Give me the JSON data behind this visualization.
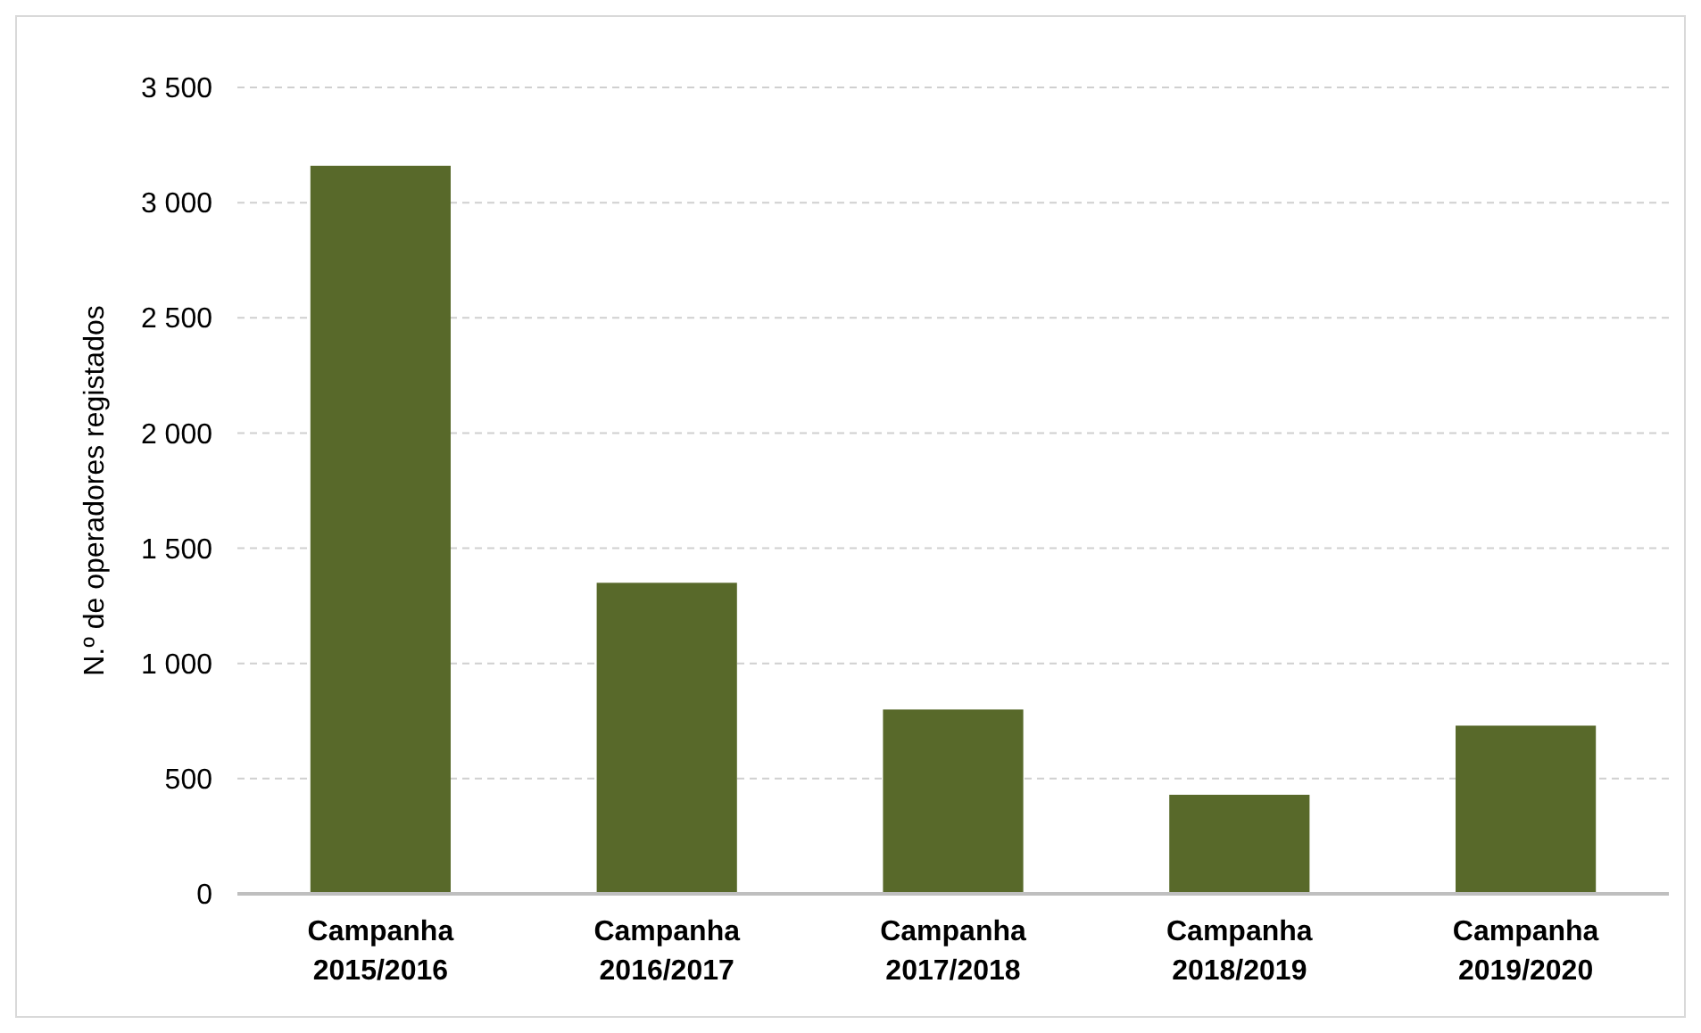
{
  "chart_data": {
    "type": "bar",
    "ylabel": "N.º de operadores registados",
    "categories": [
      "Campanha 2015/2016",
      "Campanha 2016/2017",
      "Campanha 2017/2018",
      "Campanha 2018/2019",
      "Campanha 2019/2020"
    ],
    "values": [
      3160,
      1350,
      800,
      430,
      730
    ],
    "color": "#58692a",
    "ylim": [
      0,
      3500
    ],
    "yticks": [
      {
        "value": 0,
        "label": "0"
      },
      {
        "value": 500,
        "label": "500"
      },
      {
        "value": 1000,
        "label": "1 000"
      },
      {
        "value": 1500,
        "label": "1 500"
      },
      {
        "value": 2000,
        "label": "2 000"
      },
      {
        "value": 2500,
        "label": "2 500"
      },
      {
        "value": 3000,
        "label": "3 000"
      },
      {
        "value": 3500,
        "label": "3 500"
      }
    ],
    "grid": "y"
  }
}
